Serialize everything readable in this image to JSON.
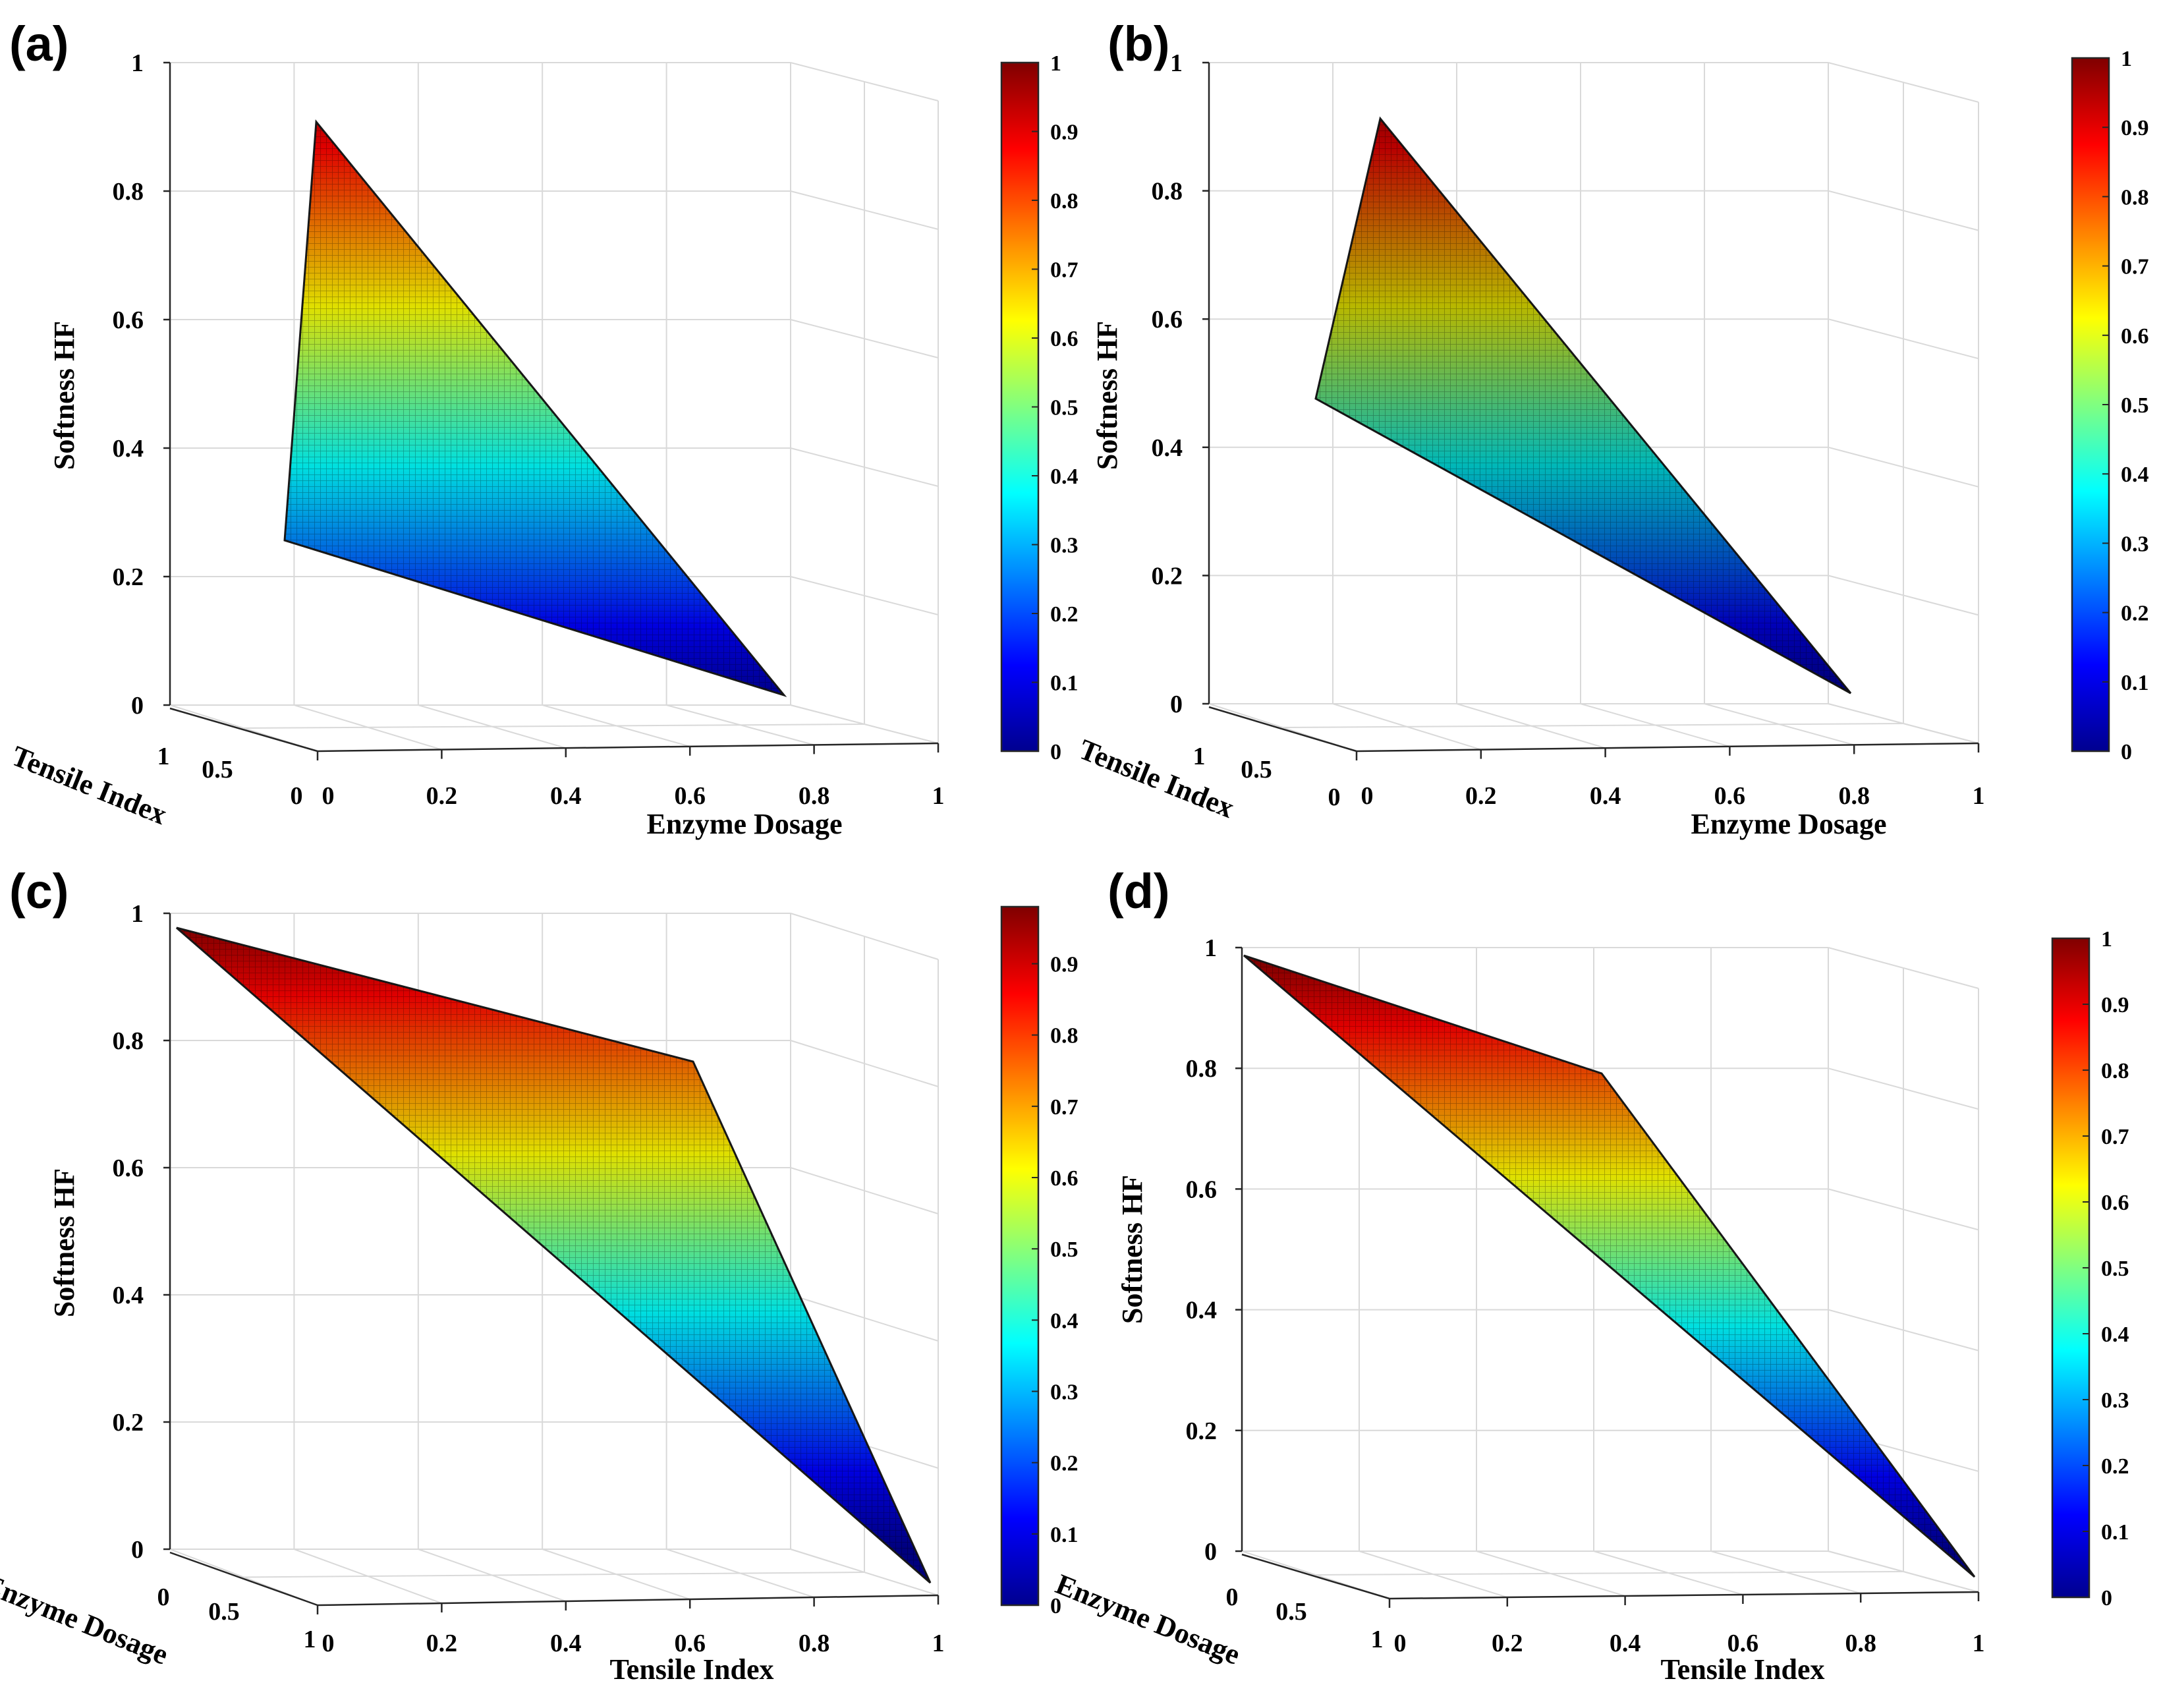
{
  "colormap": [
    "#00008f",
    "#0000ff",
    "#0080ff",
    "#00ffff",
    "#80ff80",
    "#ffff00",
    "#ff8000",
    "#ff0000",
    "#800000"
  ],
  "chart_data": [
    {
      "panel": "(a)",
      "type": "surface",
      "title": "",
      "zlabel": "Softness HF",
      "xlabel": "Enzyme Dosage",
      "ylabel": "Tensile Index",
      "xticks": [
        "0",
        "0.2",
        "0.4",
        "0.6",
        "0.8",
        "1"
      ],
      "yticks": [
        "1",
        "0.5",
        "0"
      ],
      "zticks": [
        "0",
        "0.2",
        "0.4",
        "0.6",
        "0.8",
        "1"
      ],
      "zlim": [
        0,
        1
      ],
      "surface_vertices": [
        {
          "x": 0,
          "y": 1,
          "z": 0.91
        },
        {
          "x": 0,
          "y": 1,
          "z": 0.27
        },
        {
          "x": 0.76,
          "y": 0,
          "z": 0
        }
      ],
      "colorbar": {
        "ticks": [
          "0",
          "0.1",
          "0.2",
          "0.3",
          "0.4",
          "0.5",
          "0.6",
          "0.7",
          "0.8",
          "0.9",
          "1"
        ],
        "range": [
          0,
          1
        ]
      }
    },
    {
      "panel": "(b)",
      "type": "surface",
      "title": "",
      "zlabel": "Softness HF",
      "xlabel": "Enzyme Dosage",
      "ylabel": "Tensile Index",
      "xticks": [
        "0",
        "0.2",
        "0.4",
        "0.6",
        "0.8",
        "1"
      ],
      "yticks": [
        "1",
        "0.5",
        "0"
      ],
      "zticks": [
        "0",
        "0.2",
        "0.4",
        "0.6",
        "0.8",
        "1"
      ],
      "zlim": [
        0,
        1
      ],
      "surface_vertices": [
        {
          "x": 0,
          "y": 1,
          "z": 0.91
        },
        {
          "x": 0,
          "y": 1,
          "z": 0.49
        },
        {
          "x": 0.74,
          "y": 0,
          "z": 0
        }
      ],
      "colorbar": {
        "ticks": [
          "0",
          "0.1",
          "0.2",
          "0.3",
          "0.4",
          "0.5",
          "0.6",
          "0.7",
          "0.8",
          "0.9",
          "1"
        ],
        "range": [
          0,
          1
        ]
      }
    },
    {
      "panel": "(c)",
      "type": "surface",
      "title": "",
      "zlabel": "Softness HF",
      "xlabel": "Tensile Index",
      "ylabel": "Enzyme Dosage",
      "xticks": [
        "0",
        "0.2",
        "0.4",
        "0.6",
        "0.8",
        "1"
      ],
      "yticks": [
        "0",
        "0.5",
        "1"
      ],
      "zticks": [
        "0",
        "0.2",
        "0.4",
        "0.6",
        "0.8",
        "1"
      ],
      "zlim": [
        0,
        1
      ],
      "surface_vertices": [
        {
          "x": 0,
          "y": 1,
          "z": 0.98
        },
        {
          "x": 0.58,
          "y": 0.6,
          "z": 0.79
        },
        {
          "x": 1,
          "y": 0,
          "z": 0
        }
      ],
      "colorbar": {
        "ticks": [
          "0",
          "0.1",
          "0.2",
          "0.3",
          "0.4",
          "0.5",
          "0.6",
          "0.7",
          "0.8",
          "0.9"
        ],
        "range": [
          0,
          0.98
        ]
      }
    },
    {
      "panel": "(d)",
      "type": "surface",
      "title": "",
      "zlabel": "Softness HF",
      "xlabel": "Tensile Index",
      "ylabel": "Enzyme Dosage",
      "xticks": [
        "0",
        "0.2",
        "0.4",
        "0.6",
        "0.8",
        "1"
      ],
      "yticks": [
        "0",
        "0.5",
        "1"
      ],
      "zticks": [
        "0",
        "0.2",
        "0.4",
        "0.6",
        "0.8",
        "1"
      ],
      "zlim": [
        0,
        1
      ],
      "surface_vertices": [
        {
          "x": 0,
          "y": 1,
          "z": 0.98
        },
        {
          "x": 0.56,
          "y": 0.6,
          "z": 0.79
        },
        {
          "x": 1,
          "y": 0,
          "z": 0
        }
      ],
      "colorbar": {
        "ticks": [
          "0",
          "0.1",
          "0.2",
          "0.3",
          "0.4",
          "0.5",
          "0.6",
          "0.7",
          "0.8",
          "0.9",
          "1"
        ],
        "range": [
          0,
          1
        ]
      }
    }
  ]
}
